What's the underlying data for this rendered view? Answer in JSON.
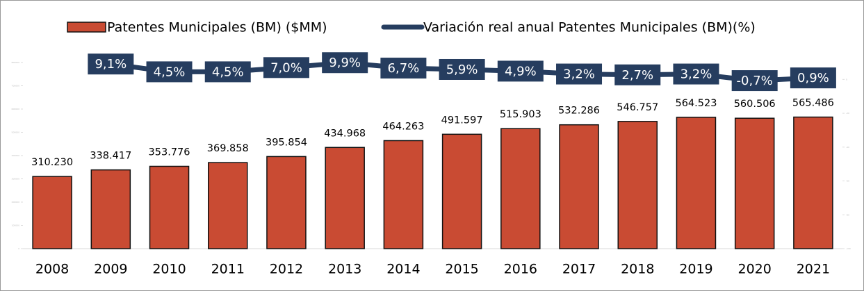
{
  "chart_data": {
    "type": "bar_line",
    "categories": [
      "2008",
      "2009",
      "2010",
      "2011",
      "2012",
      "2013",
      "2014",
      "2015",
      "2016",
      "2017",
      "2018",
      "2019",
      "2020",
      "2021"
    ],
    "series": [
      {
        "name": "Patentes Municipales (BM) ($MM)",
        "type": "bar",
        "color": "#c94b33",
        "values": [
          310230,
          338417,
          353776,
          369858,
          395854,
          434968,
          464263,
          491597,
          515903,
          532286,
          546757,
          564523,
          560506,
          565486
        ],
        "value_labels": [
          "310.230",
          "338.417",
          "353.776",
          "369.858",
          "395.854",
          "434.968",
          "464.263",
          "491.597",
          "515.903",
          "532.286",
          "546.757",
          "564.523",
          "560.506",
          "565.486"
        ]
      },
      {
        "name": "Variación real anual Patentes Municipales (BM)(%)",
        "type": "line",
        "axis": "y2",
        "color": "#263d5f",
        "values": [
          null,
          9.1,
          4.5,
          4.5,
          7.0,
          9.9,
          6.7,
          5.9,
          4.9,
          3.2,
          2.7,
          3.2,
          -0.7,
          0.9
        ],
        "value_labels": [
          null,
          "9,1%",
          "4,5%",
          "4,5%",
          "7,0%",
          "9,9%",
          "6,7%",
          "5,9%",
          "4,9%",
          "3,2%",
          "2,7%",
          "3,2%",
          "-0,7%",
          "0,9%"
        ]
      }
    ],
    "ylim": [
      0,
      800000
    ],
    "yticks": [
      0,
      100000,
      200000,
      300000,
      400000,
      500000,
      600000,
      700000,
      800000
    ],
    "y2lim": [
      -100,
      10
    ],
    "y2ticks": [
      -100,
      -80,
      -60,
      -40,
      -20,
      0
    ],
    "legend": "top"
  }
}
